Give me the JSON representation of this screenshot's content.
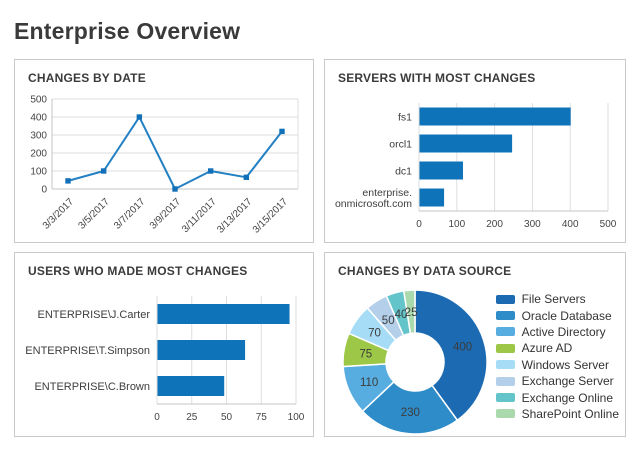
{
  "page": {
    "title": "Enterprise Overview"
  },
  "chart_data": [
    {
      "id": "changes_by_date",
      "type": "line",
      "title": "CHANGES BY DATE",
      "x": [
        "3/3/2017",
        "3/5/2017",
        "3/7/2017",
        "3/9/2017",
        "3/11/2017",
        "3/13/2017",
        "3/15/2017"
      ],
      "values": [
        45,
        100,
        400,
        0,
        100,
        65,
        320
      ],
      "xlabel": "",
      "ylabel": "",
      "ylim": [
        0,
        500
      ],
      "yticks": [
        0,
        100,
        200,
        300,
        400,
        500
      ],
      "grid": true,
      "legend_position": "none",
      "line_color": "#2280c3",
      "marker": "square",
      "marker_color": "#1270b8"
    },
    {
      "id": "servers_most_changes",
      "type": "bar",
      "orientation": "horizontal",
      "title": "SERVERS WITH MOST CHANGES",
      "categories": [
        "fs1",
        "orcl1",
        "dc1",
        "enterprise.\nonmicrosoft.com"
      ],
      "values": [
        400,
        245,
        115,
        65
      ],
      "xlabel": "",
      "ylabel": "",
      "xlim": [
        0,
        500
      ],
      "xticks": [
        0,
        100,
        200,
        300,
        400,
        500
      ],
      "grid": true,
      "legend_position": "none",
      "bar_color": "#0e73b9"
    },
    {
      "id": "users_most_changes",
      "type": "bar",
      "orientation": "horizontal",
      "title": "USERS WHO MADE MOST CHANGES",
      "categories": [
        "ENTERPRISE\\J.Carter",
        "ENTERPRISE\\T.Simpson",
        "ENTERPRISE\\C.Brown"
      ],
      "values": [
        95,
        63,
        48
      ],
      "xlabel": "",
      "ylabel": "",
      "xlim": [
        0,
        100
      ],
      "xticks": [
        0,
        25,
        50,
        75,
        100
      ],
      "grid": true,
      "legend_position": "none",
      "bar_color": "#0e73b9"
    },
    {
      "id": "changes_by_data_source",
      "type": "pie",
      "donut": true,
      "title": "CHANGES BY DATA SOURCE",
      "labels": [
        "File Servers",
        "Oracle Database",
        "Active Directory",
        "Azure AD",
        "Windows Server",
        "Exchange Server",
        "Exchange Online",
        "SharePoint Online"
      ],
      "values": [
        400,
        230,
        110,
        75,
        70,
        50,
        40,
        25
      ],
      "colors": [
        "#1c6bb2",
        "#2e8cc9",
        "#58ade0",
        "#9cc747",
        "#a6dcf6",
        "#b4cfe9",
        "#63c4ca",
        "#a9d9ac"
      ],
      "start_angle_deg_from_top": 0,
      "direction": "clockwise",
      "legend_position": "right"
    }
  ]
}
